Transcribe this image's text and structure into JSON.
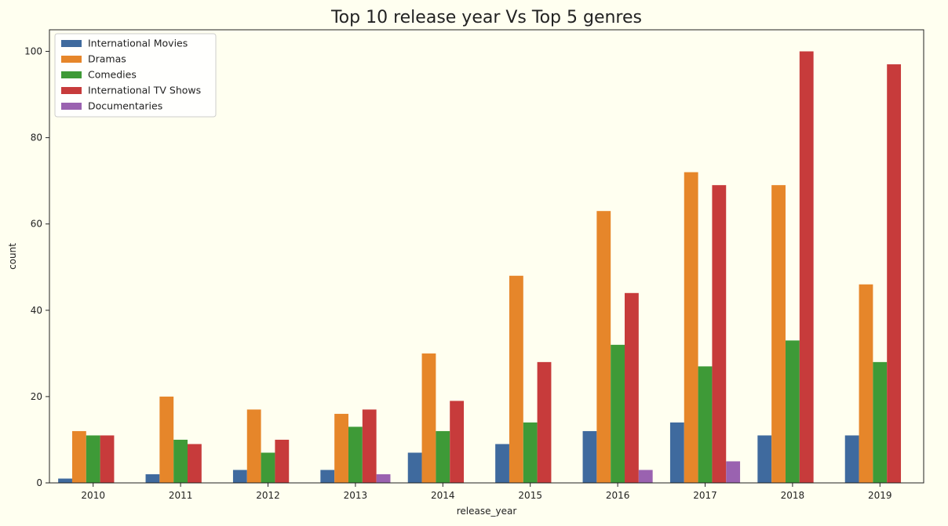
{
  "colors": {
    "background": "#fffff0",
    "axis": "#222222",
    "legend_border": "#cccccc",
    "legend_bg": "#ffffff"
  },
  "chart_data": {
    "type": "bar",
    "title": "Top 10 release year Vs Top 5 genres",
    "xlabel": "release_year",
    "ylabel": "count",
    "ylim": [
      0,
      105
    ],
    "yticks": [
      0,
      20,
      40,
      60,
      80,
      100
    ],
    "grid": false,
    "legend_position": "top-left",
    "categories": [
      "2010",
      "2011",
      "2012",
      "2013",
      "2014",
      "2015",
      "2016",
      "2017",
      "2018",
      "2019"
    ],
    "series": [
      {
        "name": "International Movies",
        "color": "#3f6a9e",
        "values": [
          1,
          2,
          3,
          3,
          7,
          9,
          12,
          14,
          11,
          11
        ]
      },
      {
        "name": " Dramas",
        "color": "#e6862a",
        "values": [
          12,
          20,
          17,
          16,
          30,
          48,
          63,
          72,
          69,
          46
        ]
      },
      {
        "name": " Comedies",
        "color": "#3e9a37",
        "values": [
          11,
          10,
          7,
          13,
          12,
          14,
          32,
          27,
          33,
          28
        ]
      },
      {
        "name": " International TV Shows",
        "color": "#c73b3b",
        "values": [
          11,
          9,
          10,
          17,
          19,
          28,
          44,
          69,
          100,
          97
        ]
      },
      {
        "name": " Documentaries",
        "color": "#9a62b0",
        "values": [
          0,
          0,
          0,
          2,
          0,
          0,
          3,
          5,
          0,
          0
        ]
      }
    ]
  }
}
